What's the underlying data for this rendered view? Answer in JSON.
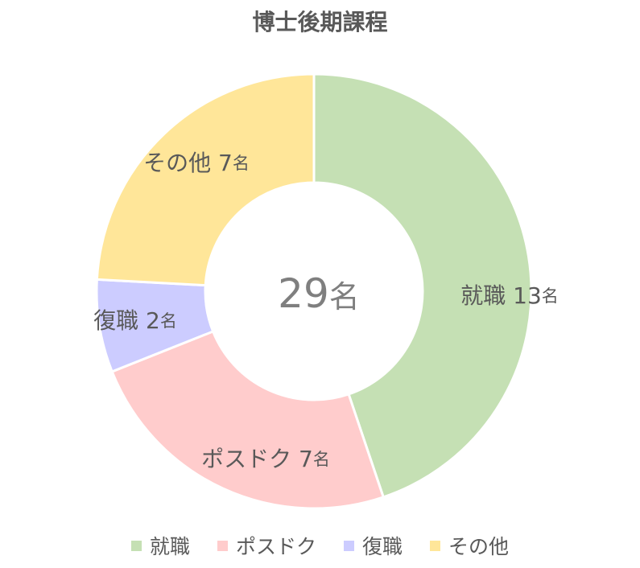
{
  "chart_data": {
    "type": "pie",
    "variant": "donut",
    "title": "博士後期課程",
    "unit": "名",
    "total_value": "29",
    "categories": [
      "就職",
      "ポスドク",
      "復職",
      "その他"
    ],
    "values": [
      13,
      7,
      2,
      7
    ],
    "colors": [
      "#c5e0b4",
      "#ffcccc",
      "#ccccff",
      "#ffe699"
    ],
    "data_labels": [
      {
        "category": "就職",
        "value": "13"
      },
      {
        "category": "ポスドク",
        "value": "7"
      },
      {
        "category": "復職",
        "value": "2"
      },
      {
        "category": "その他",
        "value": "7"
      }
    ],
    "legend_position": "bottom",
    "start_angle_deg": 0,
    "direction": "clockwise"
  }
}
